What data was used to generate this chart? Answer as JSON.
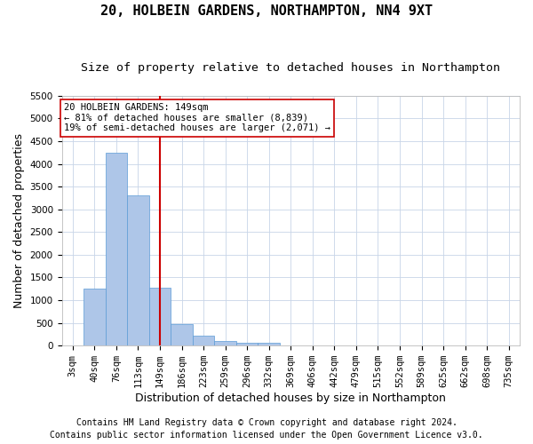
{
  "title": "20, HOLBEIN GARDENS, NORTHAMPTON, NN4 9XT",
  "subtitle": "Size of property relative to detached houses in Northampton",
  "xlabel": "Distribution of detached houses by size in Northampton",
  "ylabel": "Number of detached properties",
  "footer_line1": "Contains HM Land Registry data © Crown copyright and database right 2024.",
  "footer_line2": "Contains public sector information licensed under the Open Government Licence v3.0.",
  "bar_labels": [
    "3sqm",
    "40sqm",
    "76sqm",
    "113sqm",
    "149sqm",
    "186sqm",
    "223sqm",
    "259sqm",
    "296sqm",
    "332sqm",
    "369sqm",
    "406sqm",
    "442sqm",
    "479sqm",
    "515sqm",
    "552sqm",
    "589sqm",
    "625sqm",
    "662sqm",
    "698sqm",
    "735sqm"
  ],
  "bar_values": [
    0,
    1250,
    4250,
    3300,
    1270,
    480,
    210,
    100,
    70,
    60,
    0,
    0,
    0,
    0,
    0,
    0,
    0,
    0,
    0,
    0,
    0
  ],
  "bar_color": "#aec6e8",
  "bar_edge_color": "#5b9bd5",
  "vline_x_idx": 4,
  "vline_color": "#cc0000",
  "annotation_line1": "20 HOLBEIN GARDENS: 149sqm",
  "annotation_line2": "← 81% of detached houses are smaller (8,839)",
  "annotation_line3": "19% of semi-detached houses are larger (2,071) →",
  "annotation_box_color": "#cc0000",
  "ylim": [
    0,
    5500
  ],
  "yticks": [
    0,
    500,
    1000,
    1500,
    2000,
    2500,
    3000,
    3500,
    4000,
    4500,
    5000,
    5500
  ],
  "background_color": "#ffffff",
  "grid_color": "#c8d4e8",
  "title_fontsize": 11,
  "subtitle_fontsize": 9.5,
  "axis_label_fontsize": 9,
  "tick_fontsize": 7.5,
  "annotation_fontsize": 7.5,
  "footer_fontsize": 7
}
